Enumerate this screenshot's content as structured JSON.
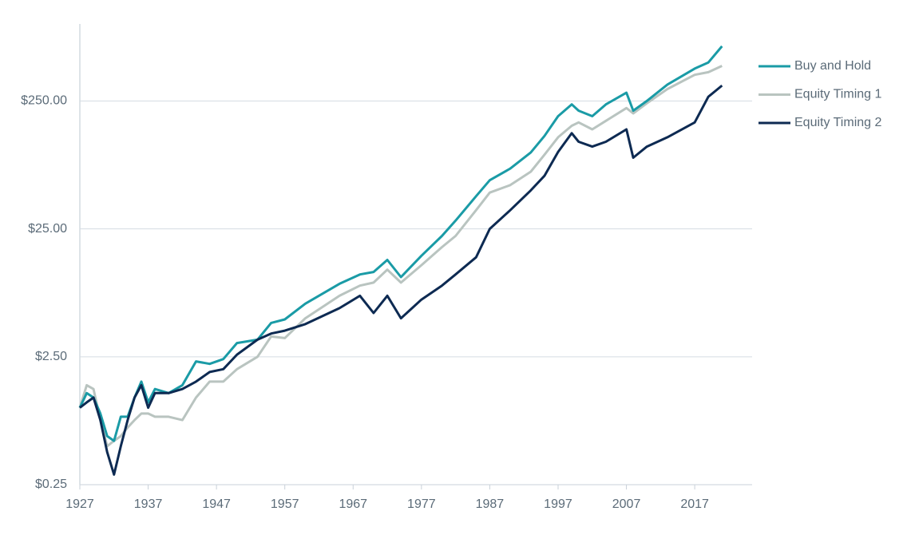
{
  "chart_data": {
    "type": "line",
    "log_scale": true,
    "grid": true,
    "legend": "right",
    "x": [
      1927,
      1928,
      1929,
      1930,
      1931,
      1932,
      1933,
      1934,
      1935,
      1936,
      1937,
      1938,
      1940,
      1942,
      1944,
      1946,
      1948,
      1950,
      1953,
      1955,
      1957,
      1960,
      1965,
      1968,
      1970,
      1972,
      1974,
      1977,
      1980,
      1982,
      1985,
      1987,
      1990,
      1993,
      1995,
      1997,
      1999,
      2000,
      2002,
      2004,
      2007,
      2008,
      2010,
      2013,
      2017,
      2019,
      2021
    ],
    "xlim": [
      1927,
      2025.4
    ],
    "xticks": [
      1927,
      1937,
      1947,
      1957,
      1967,
      1977,
      1987,
      1997,
      2007,
      2017
    ],
    "ylim": [
      0.25,
      1000
    ],
    "yticks": [
      {
        "value": 0.25,
        "label": "$0.25"
      },
      {
        "value": 2.5,
        "label": "$2.50"
      },
      {
        "value": 25,
        "label": "$25.00"
      },
      {
        "value": 250,
        "label": "$250.00"
      }
    ],
    "series": [
      {
        "name": "Buy and Hold",
        "color": "#1a9ba6",
        "values": [
          1.0,
          1.3,
          1.2,
          0.9,
          0.6,
          0.55,
          0.85,
          0.85,
          1.2,
          1.6,
          1.1,
          1.4,
          1.3,
          1.5,
          2.3,
          2.2,
          2.4,
          3.2,
          3.4,
          4.6,
          4.9,
          6.5,
          9.3,
          11,
          11.5,
          14.3,
          10.5,
          15.4,
          22,
          29,
          45,
          60,
          74,
          99,
          133,
          190,
          235,
          210,
          190,
          235,
          290,
          210,
          250,
          336,
          448,
          500,
          670
        ]
      },
      {
        "name": "Equity Timing 1",
        "color": "#b9c4c0",
        "values": [
          1.0,
          1.5,
          1.4,
          0.8,
          0.5,
          0.55,
          0.6,
          0.7,
          0.8,
          0.9,
          0.9,
          0.85,
          0.85,
          0.8,
          1.2,
          1.6,
          1.6,
          2.0,
          2.5,
          3.6,
          3.5,
          5.0,
          7.5,
          9.0,
          9.5,
          12,
          9.5,
          13,
          18,
          22,
          35,
          48,
          55,
          70,
          95,
          130,
          160,
          170,
          150,
          175,
          220,
          200,
          240,
          310,
          400,
          420,
          470
        ]
      },
      {
        "name": "Equity Timing 2",
        "color": "#0d2a52",
        "values": [
          1.0,
          1.1,
          1.2,
          0.8,
          0.45,
          0.3,
          0.5,
          0.8,
          1.2,
          1.5,
          1.0,
          1.3,
          1.3,
          1.4,
          1.6,
          1.9,
          2.0,
          2.6,
          3.4,
          3.8,
          4.0,
          4.5,
          6.0,
          7.5,
          5.5,
          7.5,
          5.0,
          7.0,
          9.0,
          11,
          15,
          25,
          35,
          50,
          65,
          100,
          140,
          120,
          110,
          120,
          150,
          90,
          110,
          130,
          170,
          270,
          330
        ]
      }
    ]
  }
}
